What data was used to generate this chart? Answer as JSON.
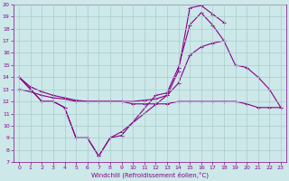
{
  "xlabel": "Windchill (Refroidissement éolien,°C)",
  "xlim_min": -0.5,
  "xlim_max": 23.5,
  "ylim_min": 7,
  "ylim_max": 20,
  "xticks": [
    0,
    1,
    2,
    3,
    4,
    5,
    6,
    7,
    8,
    9,
    10,
    11,
    12,
    13,
    14,
    15,
    16,
    17,
    18,
    19,
    20,
    21,
    22,
    23
  ],
  "yticks": [
    7,
    8,
    9,
    10,
    11,
    12,
    13,
    14,
    15,
    16,
    17,
    18,
    19,
    20
  ],
  "bg_color": "#cce8e8",
  "line_color": "#880088",
  "grid_color": "#aacccc",
  "line1_x": [
    0,
    1,
    2,
    3,
    4,
    5,
    6,
    7,
    8,
    9,
    13,
    14,
    15,
    16,
    17,
    18
  ],
  "line1_y": [
    14.0,
    13.0,
    12.0,
    12.0,
    11.5,
    9.0,
    9.0,
    7.5,
    9.0,
    9.5,
    12.5,
    14.5,
    19.7,
    19.9,
    19.2,
    18.5
  ],
  "line2_x": [
    0,
    1,
    2,
    3,
    4,
    5,
    6,
    7,
    8,
    9,
    12,
    13,
    14,
    15,
    16,
    17,
    18
  ],
  "line2_y": [
    14.0,
    13.0,
    12.0,
    12.0,
    11.5,
    9.0,
    9.0,
    7.5,
    9.0,
    9.2,
    12.5,
    12.7,
    14.8,
    18.3,
    19.3,
    18.3,
    17.0
  ],
  "line3_x": [
    0,
    1,
    2,
    3,
    4,
    5,
    6,
    7,
    8,
    9,
    10,
    11,
    12,
    13,
    14,
    15,
    16,
    17,
    18,
    19,
    20,
    21,
    22,
    23
  ],
  "line3_y": [
    14.0,
    13.2,
    12.8,
    12.5,
    12.3,
    12.1,
    12.0,
    12.0,
    12.0,
    12.0,
    12.0,
    12.1,
    12.2,
    12.5,
    13.5,
    15.8,
    16.5,
    16.8,
    17.0,
    15.0,
    14.8,
    14.0,
    13.0,
    11.5
  ],
  "line4_x": [
    0,
    1,
    2,
    3,
    4,
    5,
    6,
    7,
    8,
    9,
    10,
    11,
    12,
    13,
    14,
    15,
    16,
    17,
    18,
    19,
    20,
    21,
    22,
    23
  ],
  "line4_y": [
    13.0,
    12.8,
    12.5,
    12.3,
    12.2,
    12.0,
    12.0,
    12.0,
    12.0,
    12.0,
    11.8,
    11.8,
    11.8,
    11.8,
    12.0,
    12.0,
    12.0,
    12.0,
    12.0,
    12.0,
    11.8,
    11.5,
    11.5,
    11.5
  ]
}
